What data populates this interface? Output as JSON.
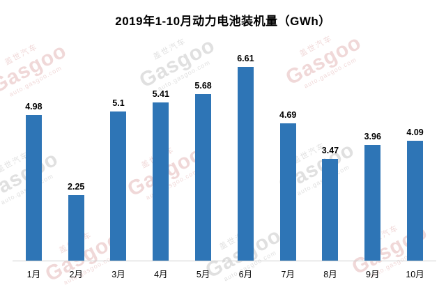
{
  "title": "2019年1-10月动力电池装机量（GWh）",
  "watermark": {
    "cn": "盖世汽车",
    "brand": "Gasgoo",
    "url": "auto.gasgoo.com"
  },
  "chart_data": {
    "type": "bar",
    "title": "2019年1-10月动力电池装机量（GWh）",
    "categories": [
      "1月",
      "2月",
      "3月",
      "4月",
      "5月",
      "6月",
      "7月",
      "8月",
      "9月",
      "10月"
    ],
    "values": [
      4.98,
      2.25,
      5.1,
      5.41,
      5.68,
      6.61,
      4.69,
      3.47,
      3.96,
      4.09
    ],
    "xlabel": "",
    "ylabel": "",
    "ylim": [
      0,
      7
    ],
    "grid": false,
    "legend": false,
    "bar_color": "#2e75b6",
    "axis_line_color": "#cccccc"
  }
}
